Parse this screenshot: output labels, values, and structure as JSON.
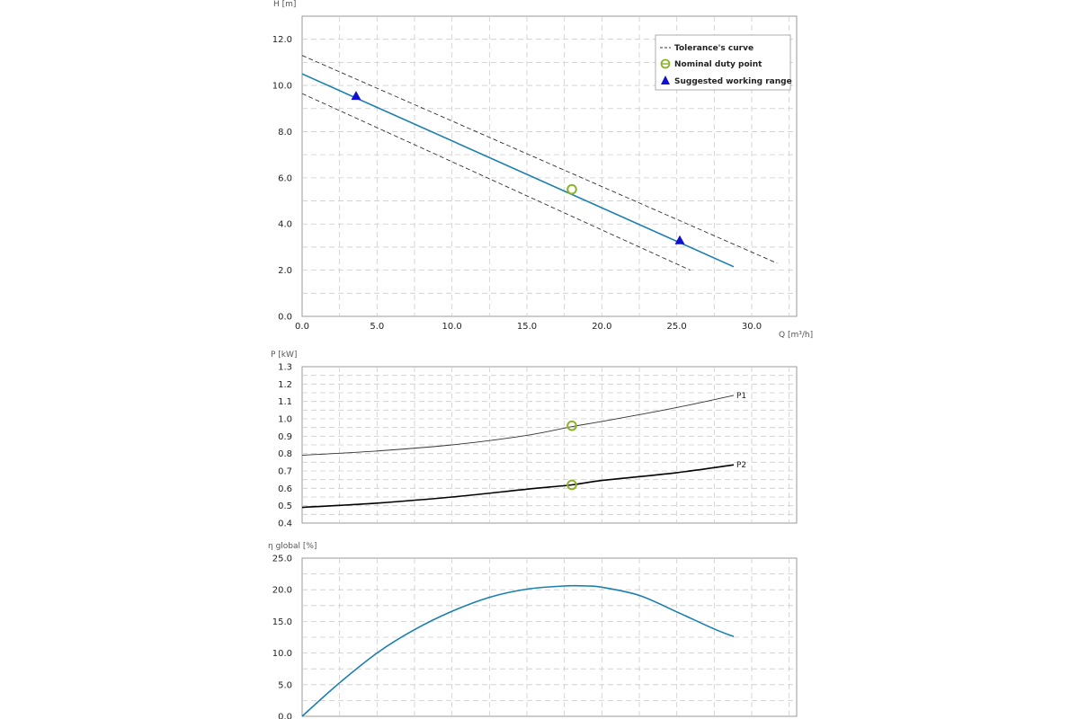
{
  "colors": {
    "pump_curve": "#1a7fb0",
    "tolerance": "#333333",
    "nominal_point": "#8db32c",
    "working_range": "#1010d0",
    "p1": "#333333",
    "p2": "#000000",
    "grid": "#cccccc",
    "frame": "#999999"
  },
  "chart_data": [
    {
      "id": "head",
      "type": "line",
      "ylabel": "H [m]",
      "xlabel": "Q [m³/h]",
      "xlim": [
        0,
        33
      ],
      "ylim": [
        0,
        13
      ],
      "x_ticks": [
        0,
        5,
        10,
        15,
        20,
        25,
        30
      ],
      "x_tick_labels": [
        "0.0",
        "5.0",
        "10.0",
        "15.0",
        "20.0",
        "25.0",
        "30.0"
      ],
      "y_ticks": [
        0,
        2,
        4,
        6,
        8,
        10,
        12
      ],
      "y_tick_labels": [
        "0.0",
        "2.0",
        "4.0",
        "6.0",
        "8.0",
        "10.0",
        "12.0"
      ],
      "grid": true,
      "legend_position": "top-right",
      "legend": [
        "Tolerance's curve",
        "Nominal duty point",
        "Suggested working range"
      ],
      "series": [
        {
          "id": "pump",
          "style": "solid",
          "x": [
            0,
            28.8
          ],
          "y": [
            10.5,
            2.15
          ]
        },
        {
          "id": "tol_upper",
          "style": "dashed",
          "x": [
            0,
            31.7
          ],
          "y": [
            11.3,
            2.3
          ]
        },
        {
          "id": "tol_lower",
          "style": "dashed",
          "x": [
            0,
            25.9
          ],
          "y": [
            9.65,
            2.0
          ]
        }
      ],
      "nominal_point": {
        "x": 18.0,
        "y": 5.5
      },
      "working_range": [
        {
          "x": 3.6,
          "y": 9.55
        },
        {
          "x": 25.2,
          "y": 3.3
        }
      ]
    },
    {
      "id": "power",
      "type": "line",
      "ylabel": "P [kW]",
      "xlim": [
        0,
        33
      ],
      "ylim": [
        0.4,
        1.3
      ],
      "x_ticks": [
        0,
        5,
        10,
        15,
        20,
        25,
        30
      ],
      "y_ticks": [
        0.4,
        0.5,
        0.6,
        0.7,
        0.8,
        0.9,
        1.0,
        1.1,
        1.2,
        1.3
      ],
      "y_tick_labels": [
        "0.4",
        "0.5",
        "0.6",
        "0.7",
        "0.8",
        "0.9",
        "1.0",
        "1.1",
        "1.2",
        "1.3"
      ],
      "grid": true,
      "series": [
        {
          "name": "P1",
          "x": [
            0,
            5,
            10,
            15,
            18,
            20,
            25,
            28.8
          ],
          "y": [
            0.79,
            0.815,
            0.85,
            0.905,
            0.955,
            0.985,
            1.065,
            1.135
          ]
        },
        {
          "name": "P2",
          "x": [
            0,
            5,
            10,
            15,
            18,
            20,
            25,
            28.8
          ],
          "y": [
            0.49,
            0.515,
            0.55,
            0.595,
            0.62,
            0.645,
            0.69,
            0.735
          ]
        }
      ],
      "nominal_points": [
        {
          "x": 18.0,
          "y": 0.96
        },
        {
          "x": 18.0,
          "y": 0.62
        }
      ]
    },
    {
      "id": "efficiency",
      "type": "line",
      "ylabel": "η global [%]",
      "xlim": [
        0,
        33
      ],
      "ylim": [
        0,
        25
      ],
      "x_ticks": [
        0,
        5,
        10,
        15,
        20,
        25,
        30
      ],
      "y_ticks": [
        0,
        5,
        10,
        15,
        20,
        25
      ],
      "y_tick_labels": [
        "0.0",
        "5.0",
        "10.0",
        "15.0",
        "20.0",
        "25.0"
      ],
      "grid": true,
      "series": [
        {
          "id": "eta",
          "x": [
            0,
            2.5,
            5,
            7.5,
            10,
            12.5,
            15,
            17.5,
            19,
            20,
            22.5,
            25,
            27.5,
            28.8
          ],
          "y": [
            0,
            5.3,
            10.0,
            13.7,
            16.6,
            18.8,
            20.1,
            20.6,
            20.6,
            20.4,
            19.1,
            16.5,
            13.8,
            12.6
          ]
        }
      ]
    }
  ]
}
